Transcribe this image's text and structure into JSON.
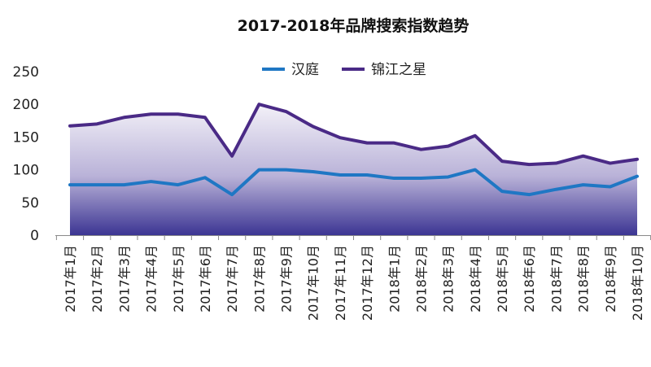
{
  "chart_data": {
    "type": "line",
    "title": "2017-2018年品牌搜索指数趋势",
    "categories": [
      "2017年1月",
      "2017年2月",
      "2017年3月",
      "2017年4月",
      "2017年5月",
      "2017年6月",
      "2017年7月",
      "2017年8月",
      "2017年9月",
      "2017年10月",
      "2017年11月",
      "2017年12月",
      "2018年1月",
      "2018年2月",
      "2018年3月",
      "2018年4月",
      "2018年5月",
      "2018年6月",
      "2018年7月",
      "2018年8月",
      "2018年9月",
      "2018年10月"
    ],
    "series": [
      {
        "name": "汉庭",
        "color": "#1f77c4",
        "values": [
          77,
          77,
          77,
          82,
          77,
          88,
          62,
          100,
          100,
          97,
          92,
          92,
          87,
          87,
          89,
          100,
          67,
          62,
          70,
          77,
          74,
          90
        ]
      },
      {
        "name": "锦江之星",
        "color": "#4a2a86",
        "values": [
          167,
          170,
          180,
          185,
          185,
          180,
          121,
          200,
          189,
          166,
          149,
          141,
          141,
          131,
          136,
          152,
          113,
          108,
          110,
          121,
          110,
          116
        ]
      }
    ],
    "ylim": [
      0,
      250
    ],
    "yticks": [
      "0",
      "50",
      "100",
      "150",
      "200",
      "250"
    ],
    "xlabel": "",
    "ylabel": "",
    "legend": "top-center",
    "grid": false,
    "area_fill": {
      "top_color": "#f3f1f8",
      "bottom_color": "#3c3593"
    }
  }
}
